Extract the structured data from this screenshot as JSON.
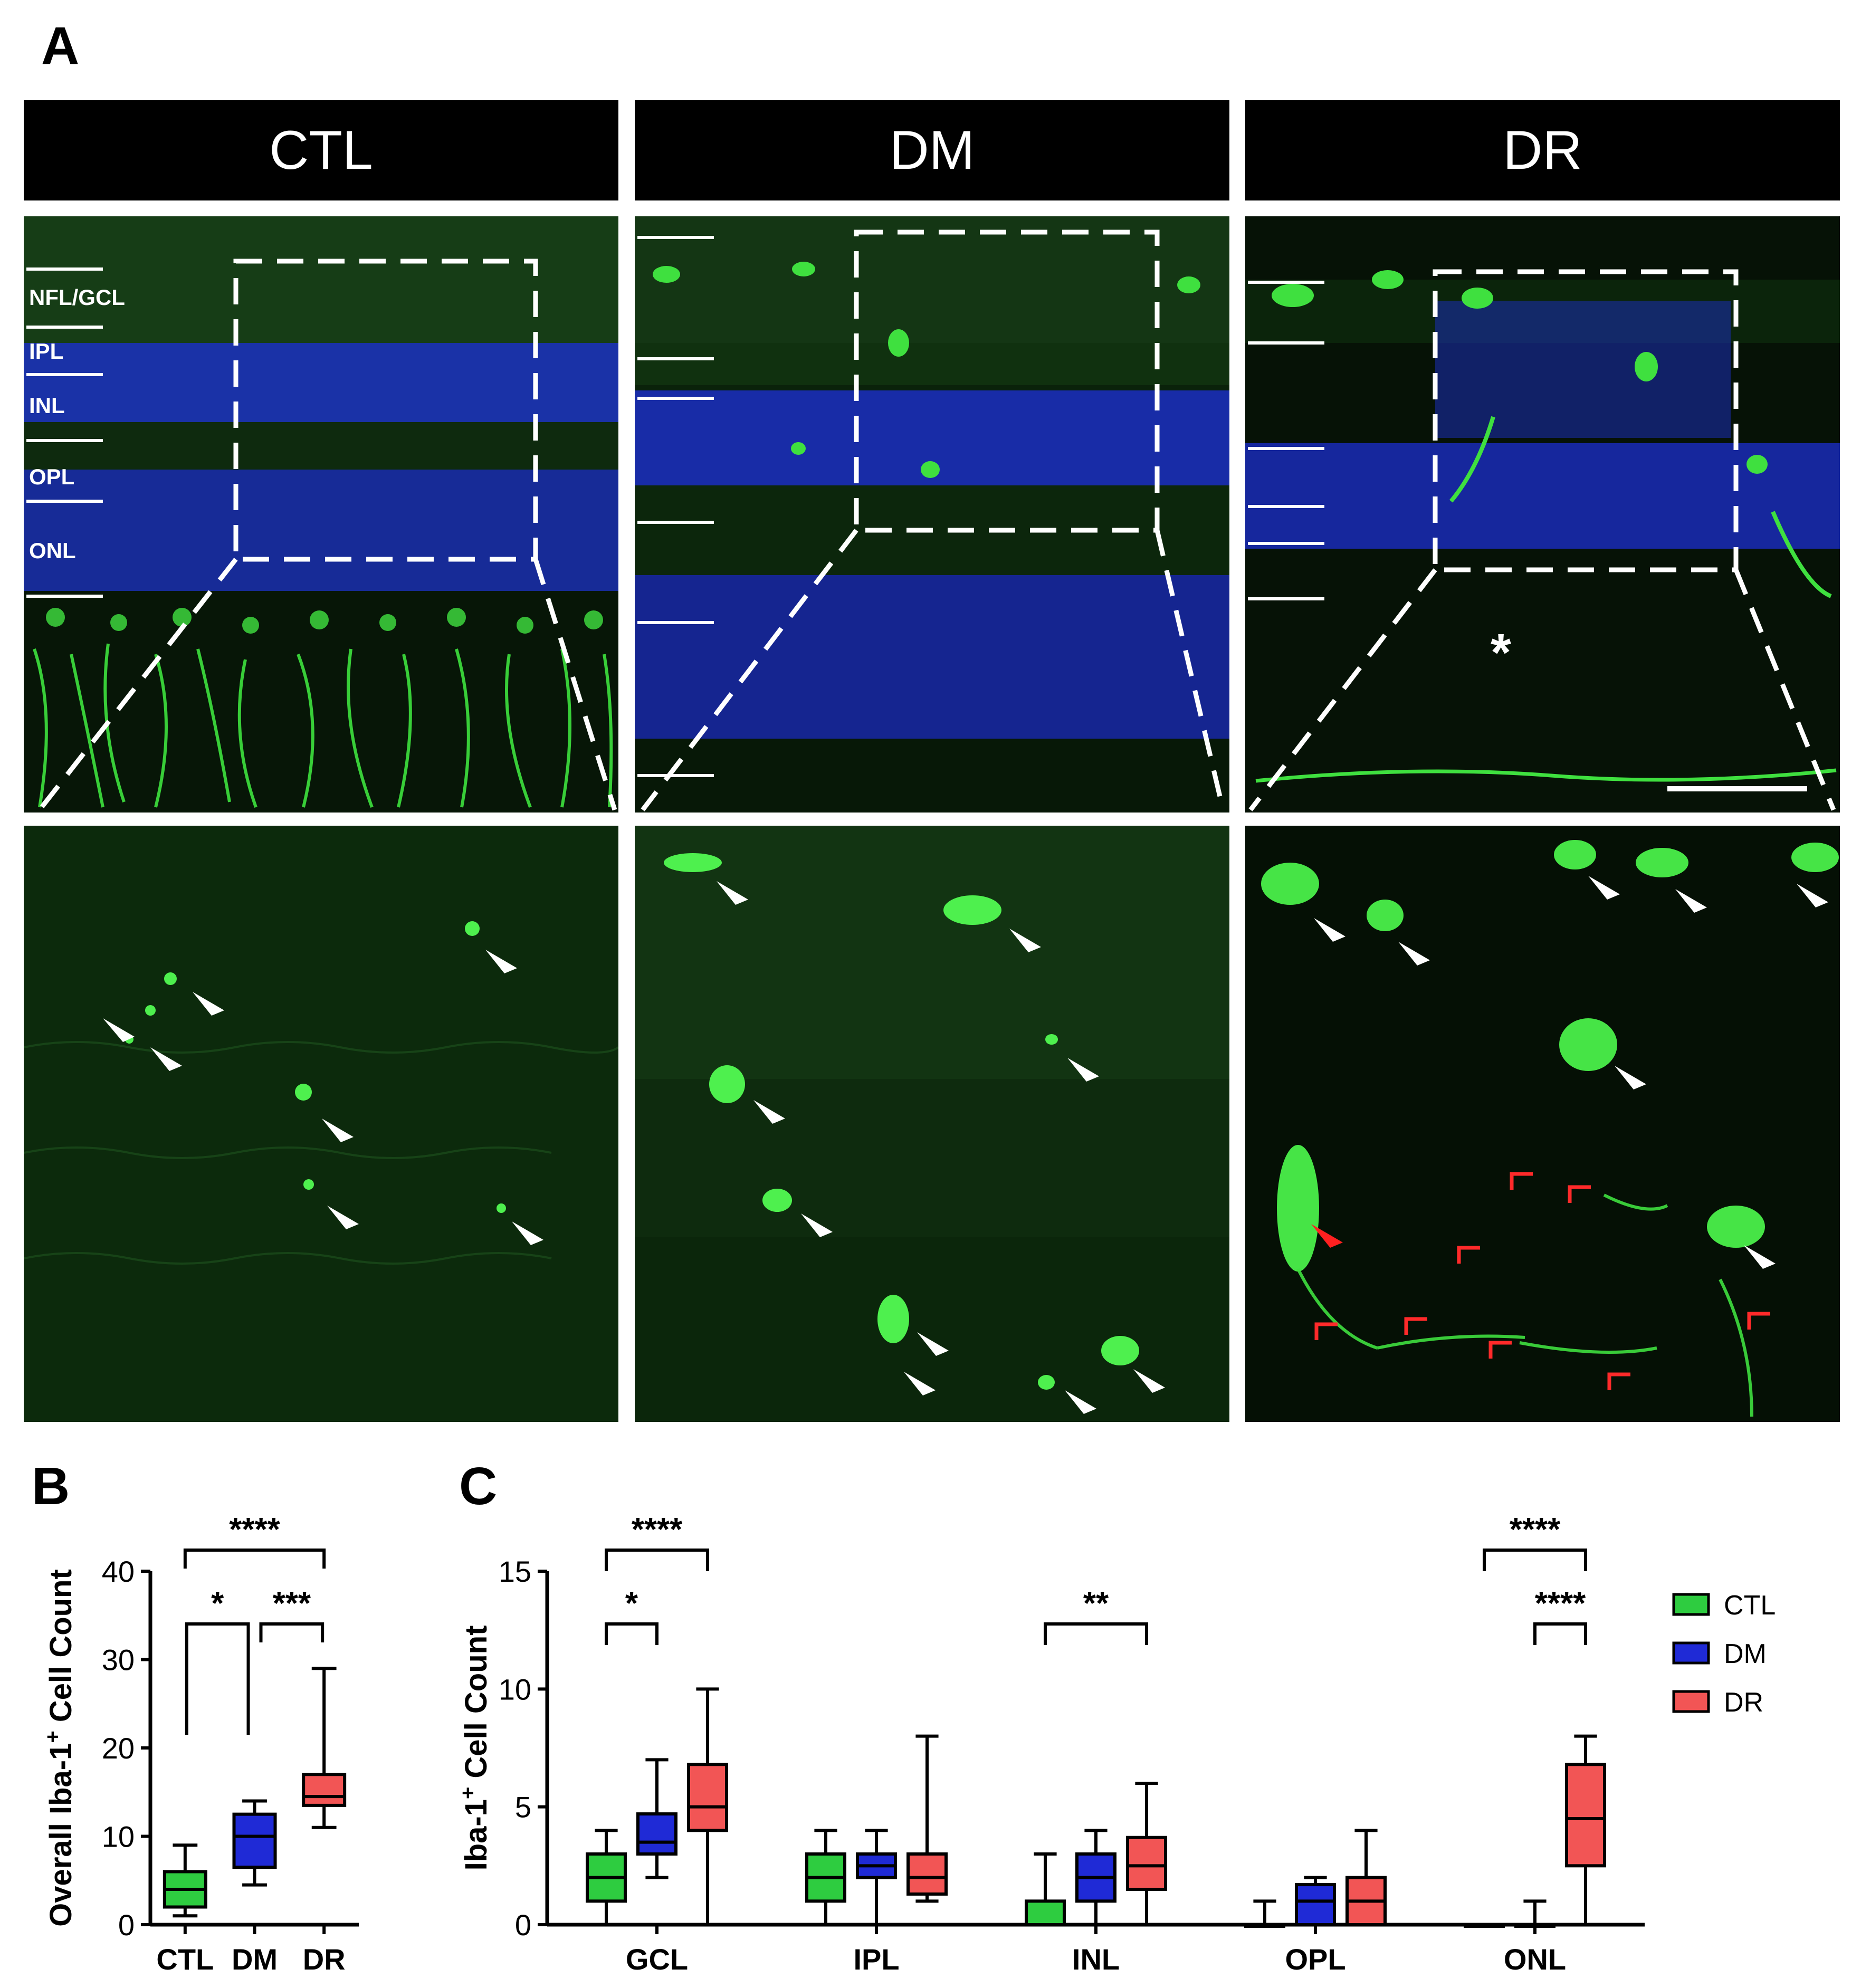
{
  "figure": {
    "panel_a_label": "A",
    "panel_b_label": "B",
    "panel_c_label": "C",
    "column_headers": [
      "CTL",
      "DM",
      "DR"
    ],
    "layer_labels": [
      "NFL/GCL",
      "IPL",
      "INL",
      "OPL",
      "ONL"
    ],
    "dr_asterisk": "*"
  },
  "colors": {
    "CTL": "#2ecc40",
    "DM": "#1f2ad6",
    "DR": "#f25555",
    "nuclei": "#1a2fcf",
    "microglia": "#34d134"
  },
  "chart_data": [
    {
      "type": "box",
      "id": "B",
      "ylabel": "Overall Iba-1+ Cell Count",
      "categories": [
        "CTL",
        "DM",
        "DR"
      ],
      "ylim": [
        0,
        40
      ],
      "yticks": [
        0,
        10,
        20,
        30,
        40
      ],
      "boxes": [
        {
          "group": "CTL",
          "min": 1,
          "q1": 2,
          "median": 4,
          "q3": 6,
          "max": 9
        },
        {
          "group": "DM",
          "min": 4.5,
          "q1": 6.5,
          "median": 10,
          "q3": 12.5,
          "max": 14
        },
        {
          "group": "DR",
          "min": 11,
          "q1": 13.5,
          "median": 14.5,
          "q3": 17,
          "max": 29
        }
      ],
      "significance": [
        {
          "from": "CTL",
          "to": "DR",
          "label": "****"
        },
        {
          "from": "CTL",
          "to": "DM",
          "label": "*"
        },
        {
          "from": "DM",
          "to": "DR",
          "label": "***"
        }
      ]
    },
    {
      "type": "box",
      "id": "C",
      "ylabel": "Iba-1+ Cell Count",
      "categories": [
        "GCL",
        "IPL",
        "INL",
        "OPL",
        "ONL"
      ],
      "ylim": [
        0,
        15
      ],
      "yticks": [
        0,
        5,
        10,
        15
      ],
      "legend": [
        "CTL",
        "DM",
        "DR"
      ],
      "legend_position": "right",
      "series": [
        {
          "name": "CTL",
          "boxes": [
            {
              "min": 0,
              "q1": 1,
              "median": 2,
              "q3": 3,
              "max": 4
            },
            {
              "min": 0,
              "q1": 1,
              "median": 2,
              "q3": 3,
              "max": 4
            },
            {
              "min": 0,
              "q1": 0,
              "median": 0,
              "q3": 1,
              "max": 3
            },
            {
              "min": 0,
              "q1": 0,
              "median": 0,
              "q3": 0,
              "max": 1
            },
            {
              "min": 0,
              "q1": 0,
              "median": 0,
              "q3": 0,
              "max": 0
            }
          ]
        },
        {
          "name": "DM",
          "boxes": [
            {
              "min": 2,
              "q1": 3,
              "median": 3.5,
              "q3": 4.7,
              "max": 7
            },
            {
              "min": 0,
              "q1": 2,
              "median": 2.5,
              "q3": 3,
              "max": 4
            },
            {
              "min": 0,
              "q1": 1,
              "median": 2,
              "q3": 3,
              "max": 4
            },
            {
              "min": 0,
              "q1": 0,
              "median": 1,
              "q3": 1.7,
              "max": 2
            },
            {
              "min": 0,
              "q1": 0,
              "median": 0,
              "q3": 0,
              "max": 1
            }
          ]
        },
        {
          "name": "DR",
          "boxes": [
            {
              "min": 0,
              "q1": 4,
              "median": 5,
              "q3": 6.8,
              "max": 10
            },
            {
              "min": 1,
              "q1": 1.3,
              "median": 2,
              "q3": 3,
              "max": 8
            },
            {
              "min": 0,
              "q1": 1.5,
              "median": 2.5,
              "q3": 3.7,
              "max": 6
            },
            {
              "min": 0,
              "q1": 0,
              "median": 1,
              "q3": 2,
              "max": 4
            },
            {
              "min": 0,
              "q1": 2.5,
              "median": 4.5,
              "q3": 6.8,
              "max": 8
            }
          ]
        }
      ],
      "significance": [
        {
          "category": "GCL",
          "from": "CTL",
          "to": "DR",
          "label": "****"
        },
        {
          "category": "GCL",
          "from": "CTL",
          "to": "DM",
          "label": "*"
        },
        {
          "category": "INL",
          "from": "CTL",
          "to": "DR",
          "label": "**"
        },
        {
          "category": "ONL",
          "from": "CTL",
          "to": "DR",
          "label": "****"
        },
        {
          "category": "ONL",
          "from": "DM",
          "to": "DR",
          "label": "****"
        }
      ]
    }
  ]
}
